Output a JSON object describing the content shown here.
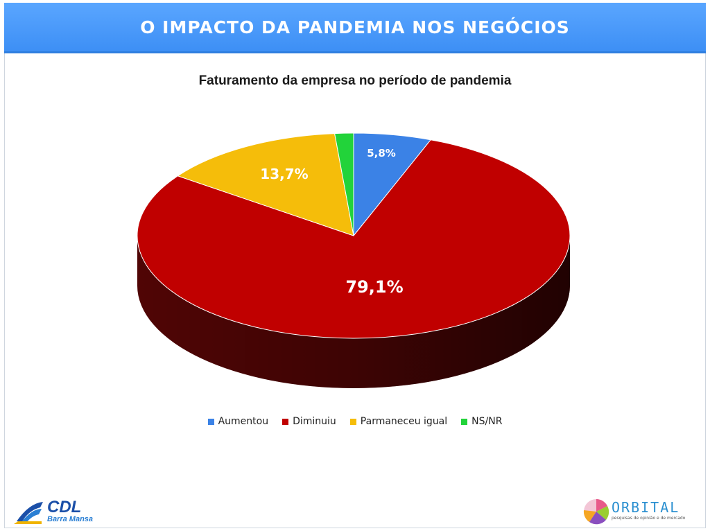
{
  "header": {
    "title": "O IMPACTO DA PANDEMIA NOS NEGÓCIOS"
  },
  "chart_data": {
    "type": "pie",
    "title": "Faturamento da empresa no período de pandemia",
    "categories": [
      "Aumentou",
      "Diminuiu",
      "Parmaneceu igual",
      "NS/NR"
    ],
    "values": [
      5.8,
      79.1,
      13.7,
      1.4
    ],
    "labels": [
      "5,8%",
      "79,1%",
      "13,7%",
      ""
    ],
    "colors": [
      "#3b82e6",
      "#c00000",
      "#f5bd0a",
      "#22d33a"
    ],
    "dark_colors": [
      "#1f4f9a",
      "#5e0606",
      "#8a6a05",
      "#138a22"
    ],
    "legend_position": "bottom",
    "three_d": true
  },
  "logos": {
    "cdl": {
      "name": "CDL",
      "sub": "Barra Mansa"
    },
    "orbital": {
      "name": "ORBITAL",
      "sub": "pesquisas de opinião e de mercado"
    }
  }
}
